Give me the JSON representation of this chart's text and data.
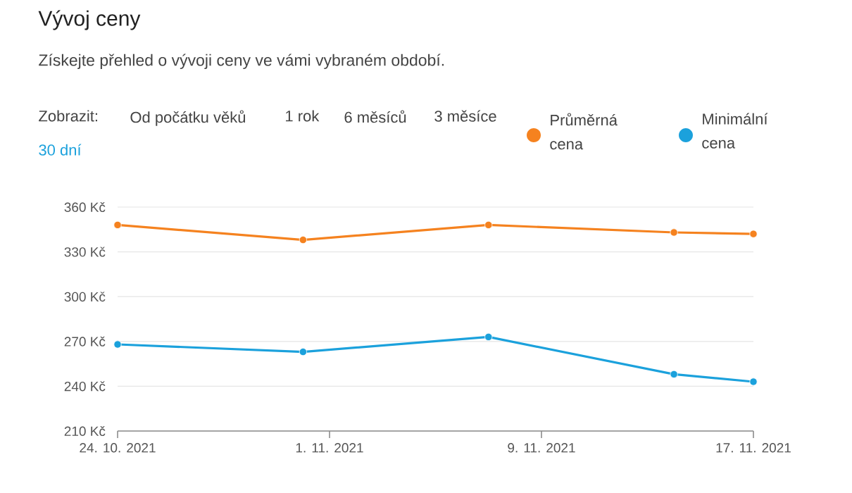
{
  "chart_data": {
    "type": "line",
    "title": "Vývoj ceny",
    "subtitle": "Získejte přehled o vývoji ceny ve vámi vybraném období.",
    "annotations": [
      "Zobrazit:",
      "Od počátku věků",
      "1 rok",
      "6 měsíců",
      "3 měsíce",
      "30 dní"
    ],
    "x": [
      "2021-10-24",
      "2021-10-31",
      "2021-11-07",
      "2021-11-14",
      "2021-11-17"
    ],
    "series": [
      {
        "name": "Průměrná cena",
        "color": "#f5821f",
        "values": [
          348,
          338,
          348,
          343,
          342
        ]
      },
      {
        "name": "Minimální cena",
        "color": "#1ba1dc",
        "values": [
          268,
          263,
          273,
          248,
          243
        ]
      }
    ],
    "xlim": [
      "2021-10-24",
      "2021-11-17"
    ],
    "xticks": [
      {
        "value": "2021-10-24",
        "label": "24. 10. 2021"
      },
      {
        "value": "2021-11-01",
        "label": "1. 11. 2021"
      },
      {
        "value": "2021-11-09",
        "label": "9. 11. 2021"
      },
      {
        "value": "2021-11-17",
        "label": "17. 11. 2021"
      }
    ],
    "ylim": [
      210,
      360
    ],
    "yticks": [
      {
        "value": 210,
        "label": "210 Kč"
      },
      {
        "value": 240,
        "label": "240 Kč"
      },
      {
        "value": 270,
        "label": "270 Kč"
      },
      {
        "value": 300,
        "label": "300 Kč"
      },
      {
        "value": 330,
        "label": "330 Kč"
      },
      {
        "value": 360,
        "label": "360 Kč"
      }
    ],
    "grid": "y",
    "legend": "top right",
    "marker": "circle",
    "line_style": "solid"
  }
}
